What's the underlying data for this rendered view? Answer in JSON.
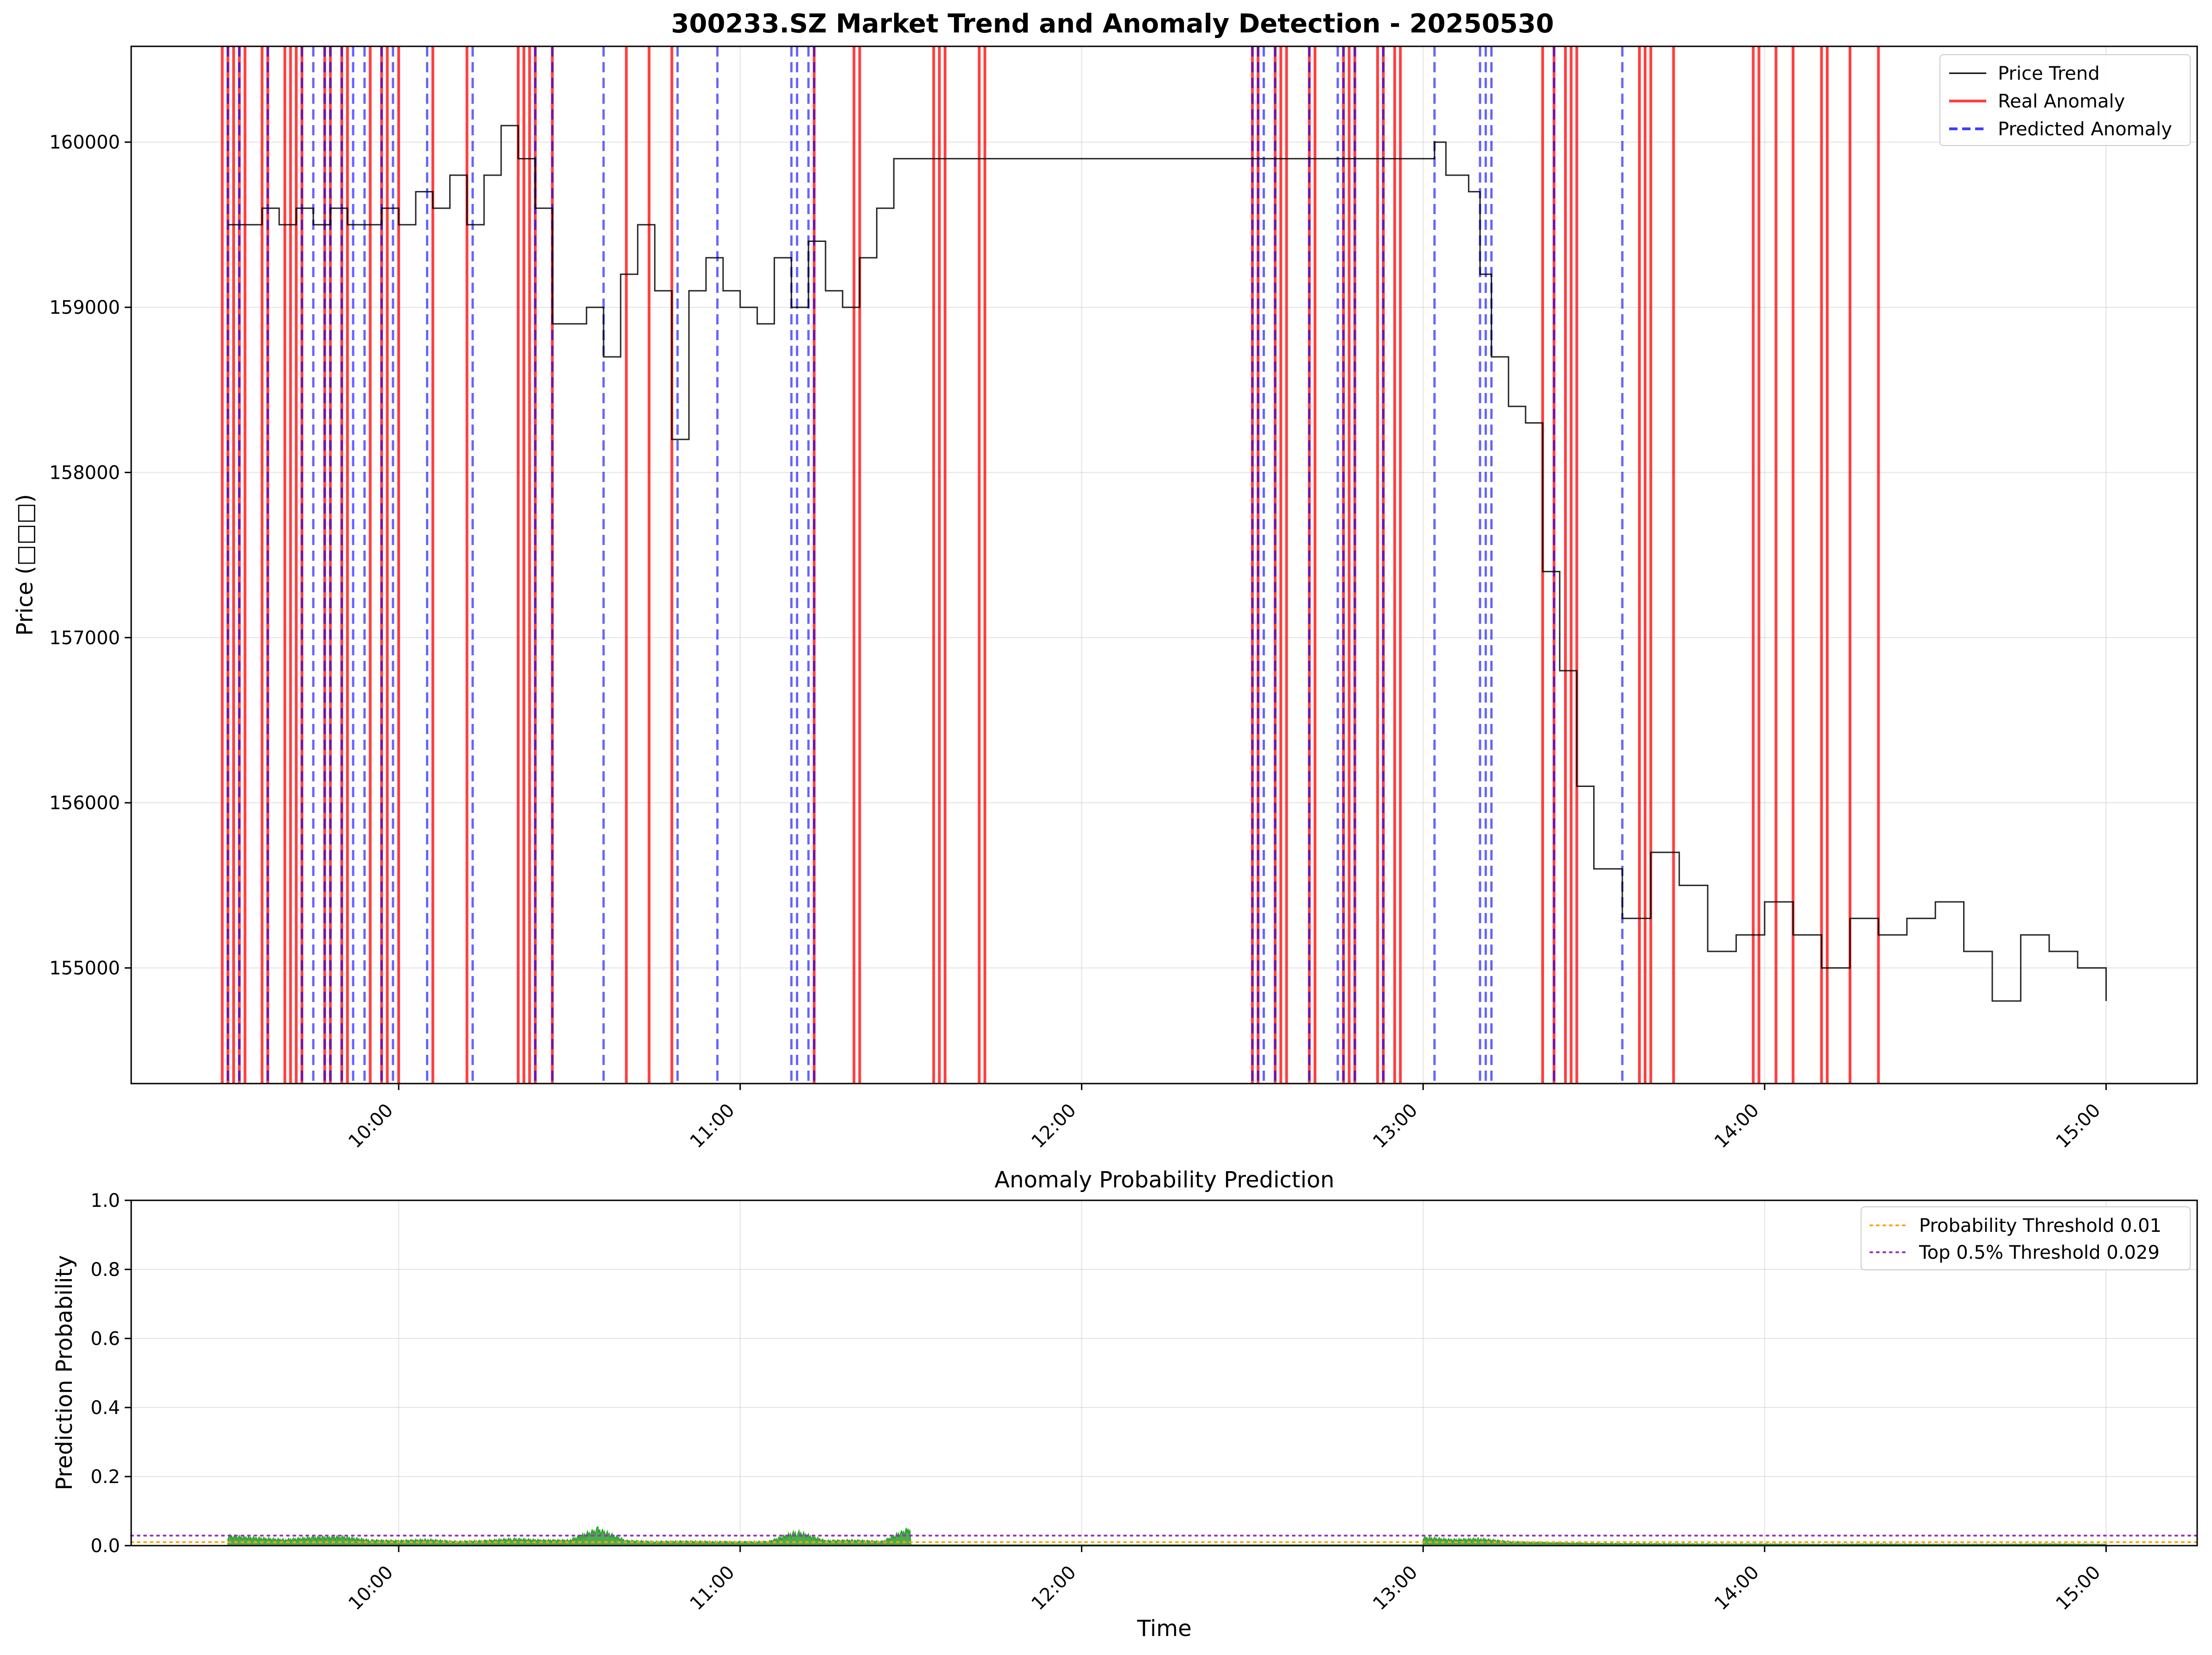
{
  "chart_data": [
    {
      "type": "line",
      "title": "300233.SZ Market Trend and Anomaly Detection - 20250530",
      "ylabel": "Price (□□□)",
      "xlabel": "",
      "x_ticks": [
        "10:00",
        "11:00",
        "12:00",
        "13:00",
        "14:00",
        "15:00"
      ],
      "y_ticks": [
        155000,
        156000,
        157000,
        158000,
        159000,
        160000
      ],
      "xlim": [
        "09:13",
        "15:16"
      ],
      "ylim": [
        154300,
        160580
      ],
      "grid": true,
      "legend_position": "top-right",
      "legend": [
        {
          "label": "Price Trend",
          "style": "solid",
          "color": "#000000"
        },
        {
          "label": "Real Anomaly",
          "style": "solid",
          "color": "#ff0000"
        },
        {
          "label": "Predicted Anomaly",
          "style": "dashed",
          "color": "#0000ff"
        }
      ],
      "series": [
        {
          "name": "Price Trend",
          "color": "#000000",
          "x": [
            "09:30",
            "09:33",
            "09:36",
            "09:39",
            "09:42",
            "09:45",
            "09:48",
            "09:51",
            "09:54",
            "09:57",
            "10:00",
            "10:03",
            "10:06",
            "10:09",
            "10:12",
            "10:15",
            "10:18",
            "10:21",
            "10:24",
            "10:27",
            "10:30",
            "10:33",
            "10:36",
            "10:39",
            "10:42",
            "10:45",
            "10:48",
            "10:51",
            "10:54",
            "10:57",
            "11:00",
            "11:03",
            "11:06",
            "11:09",
            "11:12",
            "11:15",
            "11:18",
            "11:21",
            "11:24",
            "11:27",
            "11:30",
            "13:00",
            "13:02",
            "13:04",
            "13:06",
            "13:08",
            "13:10",
            "13:12",
            "13:15",
            "13:18",
            "13:21",
            "13:24",
            "13:27",
            "13:30",
            "13:35",
            "13:40",
            "13:45",
            "13:50",
            "13:55",
            "14:00",
            "14:05",
            "14:10",
            "14:15",
            "14:20",
            "14:25",
            "14:30",
            "14:35",
            "14:40",
            "14:45",
            "14:50",
            "14:55",
            "15:00"
          ],
          "y": [
            159500,
            159500,
            159600,
            159500,
            159600,
            159500,
            159600,
            159500,
            159500,
            159600,
            159500,
            159700,
            159600,
            159800,
            159500,
            159800,
            160100,
            159900,
            159600,
            158900,
            158900,
            159000,
            158700,
            159200,
            159500,
            159100,
            158200,
            159100,
            159300,
            159100,
            159000,
            158900,
            159300,
            159000,
            159400,
            159100,
            159000,
            159300,
            159600,
            159900,
            159900,
            159900,
            160000,
            159800,
            159800,
            159700,
            159200,
            158700,
            158400,
            158300,
            157400,
            156800,
            156100,
            155600,
            155300,
            155700,
            155500,
            155100,
            155200,
            155400,
            155200,
            155000,
            155300,
            155200,
            155300,
            155400,
            155100,
            154800,
            155200,
            155100,
            155000,
            154800
          ]
        },
        {
          "name": "Real Anomaly",
          "color": "#ff0000",
          "x": [
            "09:29",
            "09:30",
            "09:31",
            "09:32",
            "09:33",
            "09:36",
            "09:37",
            "09:40",
            "09:41",
            "09:42",
            "09:43",
            "09:47",
            "09:48",
            "09:50",
            "09:51",
            "09:55",
            "09:57",
            "09:58",
            "10:00",
            "10:06",
            "10:12",
            "10:21",
            "10:22",
            "10:23",
            "10:24",
            "10:27",
            "10:40",
            "10:44",
            "10:48",
            "11:13",
            "11:20",
            "11:21",
            "11:34",
            "11:35",
            "11:36",
            "11:42",
            "11:43",
            "12:30",
            "12:31",
            "12:34",
            "12:35",
            "12:36",
            "12:40",
            "12:41",
            "12:46",
            "12:47",
            "12:48",
            "12:52",
            "12:53",
            "12:55",
            "12:56",
            "13:21",
            "13:23",
            "13:25",
            "13:26",
            "13:27",
            "13:38",
            "13:39",
            "13:40",
            "13:44",
            "13:58",
            "13:59",
            "14:02",
            "14:05",
            "14:10",
            "14:11",
            "14:15",
            "14:20"
          ]
        },
        {
          "name": "Predicted Anomaly",
          "color": "#0000ff",
          "x": [
            "09:30",
            "09:32",
            "09:37",
            "09:43",
            "09:45",
            "09:47",
            "09:48",
            "09:50",
            "09:52",
            "09:54",
            "09:57",
            "09:59",
            "10:05",
            "10:13",
            "10:24",
            "10:27",
            "10:36",
            "10:49",
            "10:56",
            "11:09",
            "11:10",
            "11:12",
            "11:13",
            "12:30",
            "12:31",
            "12:32",
            "12:34",
            "12:40",
            "12:45",
            "12:46",
            "12:48",
            "12:53",
            "13:02",
            "13:10",
            "13:11",
            "13:12",
            "13:23",
            "13:35"
          ]
        }
      ]
    },
    {
      "type": "area",
      "title": "Anomaly Probability Prediction",
      "xlabel": "Time",
      "ylabel": "Prediction Probability",
      "x_ticks": [
        "10:00",
        "11:00",
        "12:00",
        "13:00",
        "14:00",
        "15:00"
      ],
      "y_ticks": [
        "0.0",
        "0.2",
        "0.4",
        "0.6",
        "0.8",
        "1.0"
      ],
      "ylim": [
        0,
        1
      ],
      "grid": true,
      "legend_position": "top-right",
      "legend": [
        {
          "label": "Probability Threshold 0.01",
          "style": "dotted",
          "color": "#ffa500"
        },
        {
          "label": "Top 0.5% Threshold 0.029",
          "style": "dotted",
          "color": "#9b30c0"
        }
      ],
      "thresholds": [
        {
          "name": "Probability Threshold 0.01",
          "value": 0.01,
          "color": "#ffa500"
        },
        {
          "name": "Top 0.5% Threshold 0.029",
          "value": 0.029,
          "color": "#9b30c0"
        }
      ],
      "series": [
        {
          "name": "Prediction Probability",
          "color": "#2ca02c",
          "x": [
            "09:30",
            "09:35",
            "09:40",
            "09:45",
            "09:50",
            "09:55",
            "10:00",
            "10:05",
            "10:10",
            "10:15",
            "10:20",
            "10:25",
            "10:30",
            "10:35",
            "10:40",
            "10:45",
            "10:50",
            "10:55",
            "11:00",
            "11:05",
            "11:10",
            "11:15",
            "11:20",
            "11:25",
            "11:30",
            "13:00",
            "13:05",
            "13:10",
            "13:15",
            "13:20",
            "13:25",
            "13:30",
            "13:40",
            "13:50",
            "14:00",
            "14:10",
            "14:20",
            "14:30",
            "14:40",
            "14:50",
            "15:00"
          ],
          "y": [
            0.035,
            0.028,
            0.022,
            0.03,
            0.032,
            0.02,
            0.018,
            0.022,
            0.015,
            0.018,
            0.025,
            0.02,
            0.02,
            0.06,
            0.018,
            0.015,
            0.016,
            0.015,
            0.014,
            0.015,
            0.05,
            0.018,
            0.02,
            0.015,
            0.065,
            0.03,
            0.022,
            0.025,
            0.015,
            0.012,
            0.01,
            0.008,
            0.007,
            0.006,
            0.006,
            0.005,
            0.006,
            0.005,
            0.005,
            0.006,
            0.005
          ]
        }
      ]
    }
  ]
}
